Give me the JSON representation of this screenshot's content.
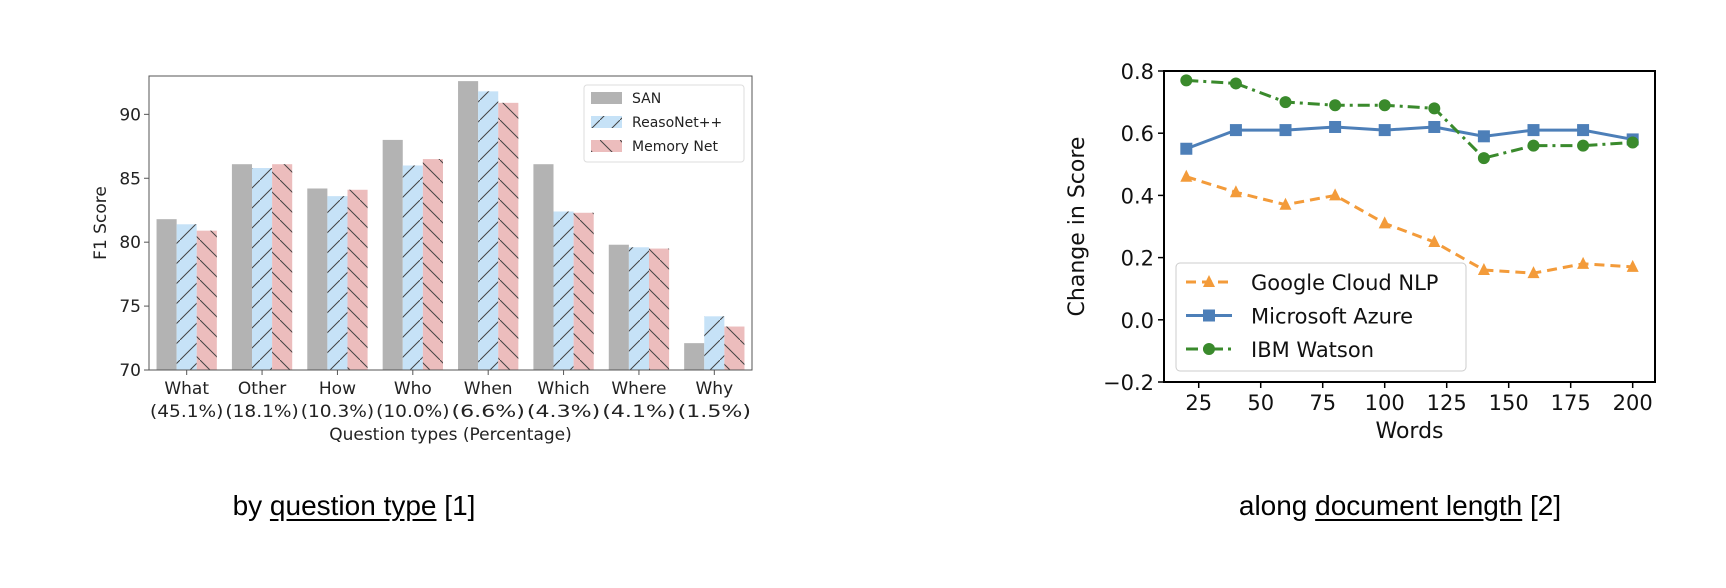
{
  "chart_data": [
    {
      "type": "bar",
      "ylabel": "F1 Score",
      "xlabel": "Question types (Percentage)",
      "categories": [
        "What",
        "Other",
        "How",
        "Who",
        "When",
        "Which",
        "Where",
        "Why"
      ],
      "category_sublabels": [
        "(45.1%)",
        "(18.1%)",
        "(10.3%)",
        "(10.0%)",
        "(6.6%)",
        "(4.3%)",
        "(4.1%)",
        "(1.5%)"
      ],
      "ylim": [
        70,
        93
      ],
      "yticks": [
        70,
        75,
        80,
        85,
        90
      ],
      "legend_position": "top-right",
      "grid": false,
      "series": [
        {
          "name": "SAN",
          "color": "#b3b3b3",
          "hatch": "none",
          "values": [
            81.8,
            86.1,
            84.2,
            88.0,
            92.6,
            86.1,
            79.8,
            72.1
          ]
        },
        {
          "name": "ReasoNet++",
          "color": "#c6e2f7",
          "hatch": "/",
          "values": [
            81.4,
            85.8,
            83.6,
            86.0,
            91.8,
            82.4,
            79.6,
            74.2
          ]
        },
        {
          "name": "Memory Net",
          "color": "#ecbdbd",
          "hatch": "\\",
          "values": [
            80.9,
            86.1,
            84.1,
            86.5,
            90.9,
            82.3,
            79.5,
            73.4
          ]
        }
      ]
    },
    {
      "type": "line",
      "ylabel": "Change in Score",
      "xlabel": "Words",
      "x": [
        20,
        40,
        60,
        80,
        100,
        120,
        140,
        160,
        180,
        200
      ],
      "xlim": [
        11,
        209
      ],
      "ylim": [
        -0.2,
        0.8
      ],
      "xticks": [
        25,
        50,
        75,
        100,
        125,
        150,
        175,
        200
      ],
      "yticks": [
        "-0.2",
        "0.0",
        "0.2",
        "0.4",
        "0.6",
        "0.8"
      ],
      "legend_position": "lower-left",
      "grid": false,
      "series": [
        {
          "name": "Google Cloud NLP",
          "color": "#f39b3a",
          "linestyle": "dashed",
          "marker": "triangle",
          "values": [
            0.46,
            0.41,
            0.37,
            0.4,
            0.31,
            0.25,
            0.16,
            0.15,
            0.18,
            0.17
          ]
        },
        {
          "name": "Microsoft Azure",
          "color": "#4d7fb8",
          "linestyle": "solid",
          "marker": "square",
          "values": [
            0.55,
            0.61,
            0.61,
            0.62,
            0.61,
            0.62,
            0.59,
            0.61,
            0.61,
            0.58
          ]
        },
        {
          "name": "IBM Watson",
          "color": "#3a8a2c",
          "linestyle": "dashdot",
          "marker": "circle",
          "values": [
            0.77,
            0.76,
            0.7,
            0.69,
            0.69,
            0.68,
            0.52,
            0.56,
            0.56,
            0.57
          ]
        }
      ]
    }
  ],
  "captions": [
    {
      "prefix": "by ",
      "link": "question type",
      "suffix": " [1]"
    },
    {
      "prefix": "along ",
      "link": "document length",
      "suffix": " [2]"
    }
  ]
}
